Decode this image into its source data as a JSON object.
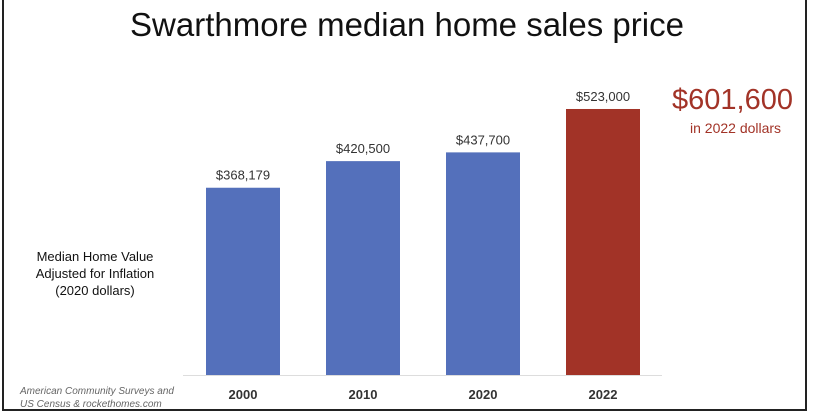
{
  "chart_data": {
    "type": "bar",
    "title": "Swarthmore median home sales price",
    "xlabel": "",
    "ylabel": "Median Home Value Adjusted for Inflation (2020 dollars)",
    "ylabel_lines": [
      "Median Home Value",
      "Adjusted for Inflation",
      "(2020 dollars)"
    ],
    "categories": [
      "2000",
      "2010",
      "2020",
      "2022"
    ],
    "values": [
      368179,
      420500,
      437700,
      523000
    ],
    "data_labels": [
      "$368,179",
      "$420,500",
      "$437,700",
      "$523,000"
    ],
    "colors": [
      "#5470bb",
      "#5470bb",
      "#5470bb",
      "#a23327"
    ],
    "ylim": [
      0,
      580000
    ],
    "grid": false,
    "annotation": {
      "value": "$601,600",
      "subtitle": "in 2022 dollars",
      "color": "#a23327"
    },
    "source_lines": [
      "American Community Surveys and",
      "US Census & rockethomes.com"
    ]
  }
}
